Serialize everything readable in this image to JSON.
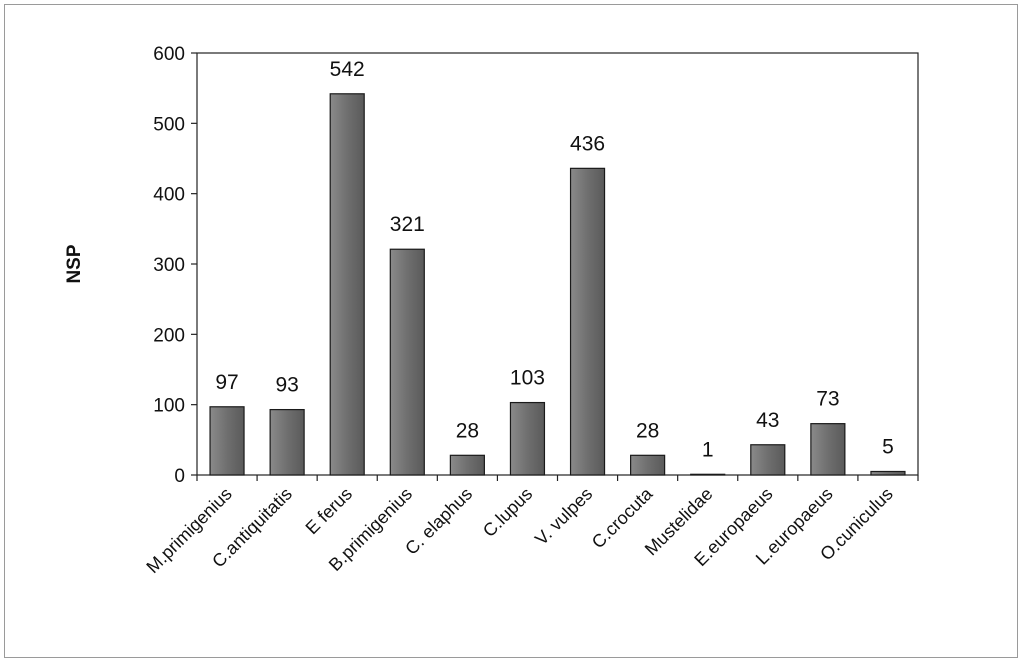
{
  "chart_data": {
    "type": "bar",
    "title": "",
    "xlabel": "",
    "ylabel": "NSP",
    "ylim": [
      0,
      600
    ],
    "yticks": [
      0,
      100,
      200,
      300,
      400,
      500,
      600
    ],
    "grid": false,
    "categories": [
      "M.primigenius",
      "C.antiquitatis",
      "E ferus",
      "B.primigenius",
      "C. elaphus",
      "C.lupus",
      "V. vulpes",
      "C.crocuta",
      "Mustelidae",
      "E.europaeus",
      "L.europaeus",
      "O.cuniculus"
    ],
    "values": [
      97,
      93,
      542,
      321,
      28,
      103,
      436,
      28,
      1,
      43,
      73,
      5
    ],
    "data_labels": [
      "97",
      "93",
      "542",
      "321",
      "28",
      "103",
      "436",
      "28",
      "1",
      "43",
      "73",
      "5"
    ],
    "bar_color": "#6f6f6f"
  }
}
